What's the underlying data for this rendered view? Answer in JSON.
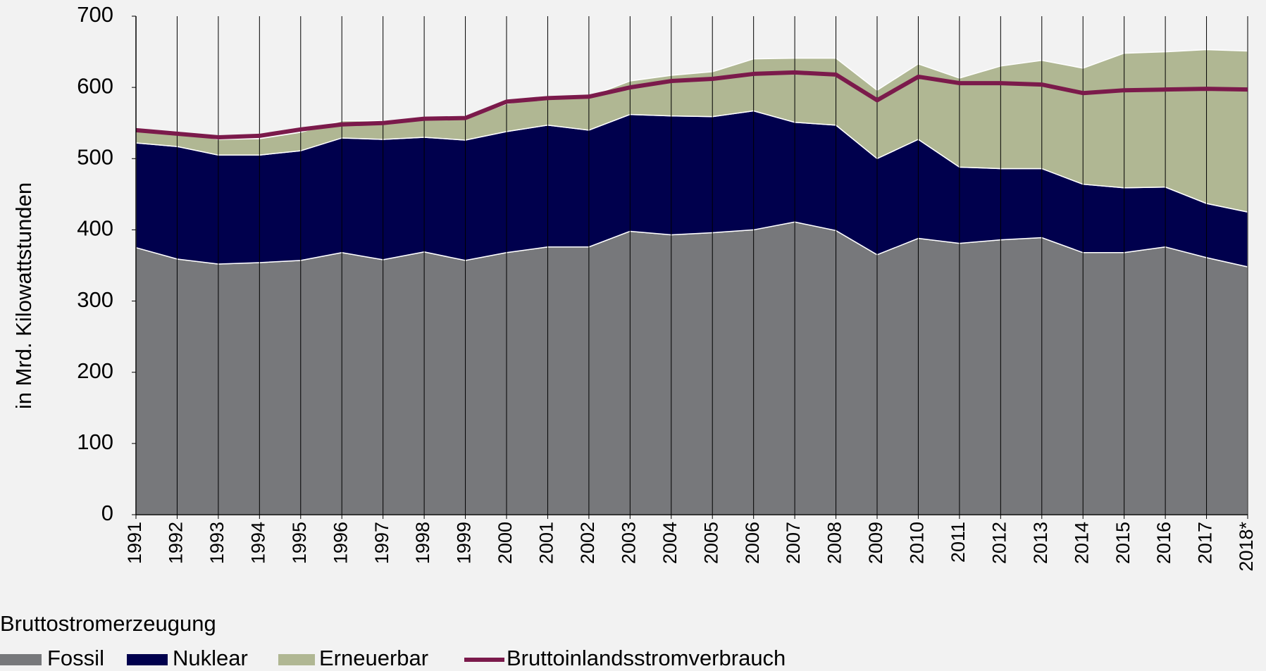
{
  "chart_data": {
    "type": "stacked_area",
    "y_label": "in Mrd. Kilowattstunden",
    "legend_title": "Bruttostromerzeugung",
    "legend": "bottom-left",
    "categories": [
      "1991",
      "1992",
      "1993",
      "1994",
      "1995",
      "1996",
      "1997",
      "1998",
      "1999",
      "2000",
      "2001",
      "2002",
      "2003",
      "2004",
      "2005",
      "2006",
      "2007",
      "2008",
      "2009",
      "2010",
      "2011",
      "2012",
      "2013",
      "2014",
      "2015",
      "2016",
      "2017",
      "2018*"
    ],
    "ylim": [
      0,
      700
    ],
    "yticks": [
      0,
      100,
      200,
      300,
      400,
      500,
      600,
      700
    ],
    "grid": "vertical",
    "series": [
      {
        "name": "Fossil",
        "color": "#77787b",
        "kind": "area",
        "values": [
          375,
          359,
          352,
          354,
          357,
          368,
          358,
          369,
          357,
          368,
          376,
          376,
          398,
          393,
          396,
          400,
          411,
          399,
          365,
          388,
          381,
          386,
          389,
          368,
          368,
          376,
          361,
          348
        ]
      },
      {
        "name": "Nuklear",
        "color": "#00004d",
        "kind": "area",
        "values": [
          147,
          158,
          153,
          151,
          154,
          161,
          169,
          161,
          169,
          170,
          171,
          164,
          164,
          167,
          163,
          167,
          140,
          148,
          135,
          139,
          107,
          100,
          97,
          96,
          91,
          84,
          76,
          77
        ]
      },
      {
        "name": "Erneuerbar",
        "color": "#b0b793",
        "kind": "area",
        "values": [
          19,
          21,
          22,
          23,
          26,
          24,
          26,
          27,
          30,
          39,
          40,
          47,
          47,
          57,
          63,
          73,
          90,
          94,
          96,
          106,
          125,
          144,
          152,
          163,
          189,
          190,
          216,
          226
        ]
      },
      {
        "name": "Bruttoinlandsstromverbrauch",
        "color": "#7b1a4b",
        "kind": "line",
        "values": [
          540,
          535,
          530,
          532,
          541,
          548,
          550,
          556,
          557,
          580,
          585,
          587,
          600,
          609,
          612,
          619,
          621,
          618,
          582,
          615,
          606,
          606,
          604,
          592,
          596,
          597,
          598,
          597
        ]
      }
    ]
  }
}
